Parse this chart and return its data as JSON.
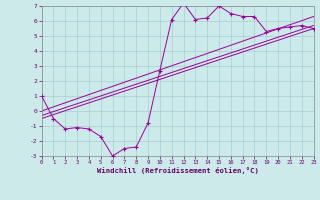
{
  "xlabel": "Windchill (Refroidissement éolien,°C)",
  "bg_color": "#cceaea",
  "grid_color": "#aacccc",
  "line_color": "#990099",
  "marker": "+",
  "xlim": [
    0,
    23
  ],
  "ylim": [
    -3,
    7
  ],
  "xticks": [
    0,
    1,
    2,
    3,
    4,
    5,
    6,
    7,
    8,
    9,
    10,
    11,
    12,
    13,
    14,
    15,
    16,
    17,
    18,
    19,
    20,
    21,
    22,
    23
  ],
  "yticks": [
    -3,
    -2,
    -1,
    0,
    1,
    2,
    3,
    4,
    5,
    6,
    7
  ],
  "main_series_x": [
    0,
    1,
    2,
    3,
    4,
    5,
    6,
    7,
    8,
    9,
    10,
    11,
    12,
    13,
    14,
    15,
    16,
    17,
    18,
    19,
    20,
    21,
    22,
    23
  ],
  "main_series_y": [
    1.0,
    -0.5,
    -1.2,
    -1.1,
    -1.2,
    -1.7,
    -3.0,
    -2.5,
    -2.4,
    -0.8,
    2.7,
    6.1,
    7.2,
    6.1,
    6.2,
    7.0,
    6.5,
    6.3,
    6.3,
    5.3,
    5.5,
    5.6,
    5.7,
    5.5
  ],
  "line1_x": [
    0,
    23
  ],
  "line1_y": [
    -0.5,
    5.5
  ],
  "line2_x": [
    0,
    23
  ],
  "line2_y": [
    -0.3,
    5.7
  ],
  "line3_x": [
    0,
    23
  ],
  "line3_y": [
    0.0,
    6.3
  ],
  "ylabel_size": 5.5,
  "tick_size": 5.0,
  "lw": 0.7
}
